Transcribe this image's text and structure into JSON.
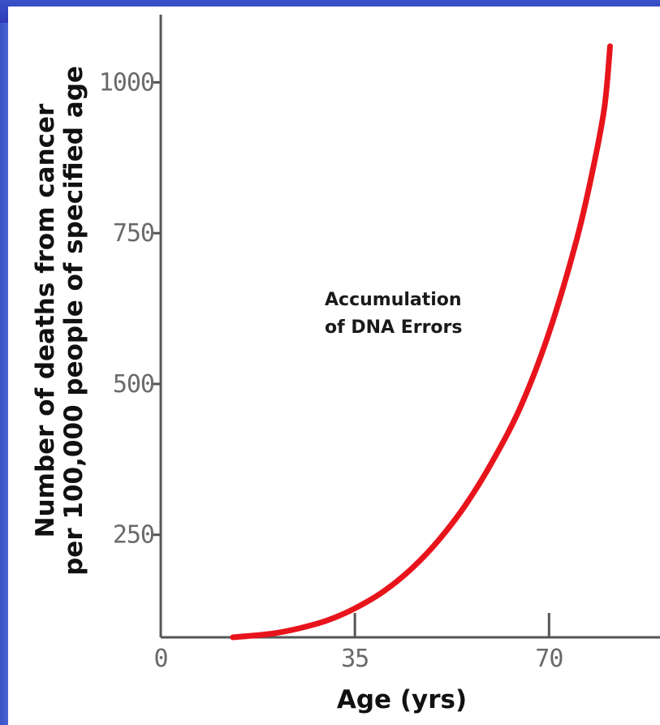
{
  "chart_data": {
    "type": "line",
    "xlabel": "Age (yrs)",
    "ylabel_line1": "Number of deaths from cancer",
    "ylabel_line2": "per 100,000 people of specified age",
    "annotation_line1": "Accumulation",
    "annotation_line2": "of DNA Errors",
    "x_ticks": [
      0,
      35,
      70
    ],
    "x_tick_labels": [
      "0",
      "35",
      "70"
    ],
    "y_ticks": [
      250,
      500,
      750,
      1000
    ],
    "y_tick_labels": [
      "250",
      "500",
      "750",
      "1000"
    ],
    "xlim": [
      0,
      81
    ],
    "ylim": [
      80,
      1080
    ],
    "series": [
      {
        "color": "#e8141c",
        "x": [
          13,
          20,
          25,
          30,
          35,
          40,
          45,
          50,
          55,
          60,
          65,
          70,
          75,
          78,
          80,
          81
        ],
        "y": [
          80,
          86,
          95,
          108,
          128,
          155,
          192,
          240,
          300,
          375,
          465,
          585,
          740,
          860,
          960,
          1060
        ]
      }
    ],
    "grid": false
  }
}
